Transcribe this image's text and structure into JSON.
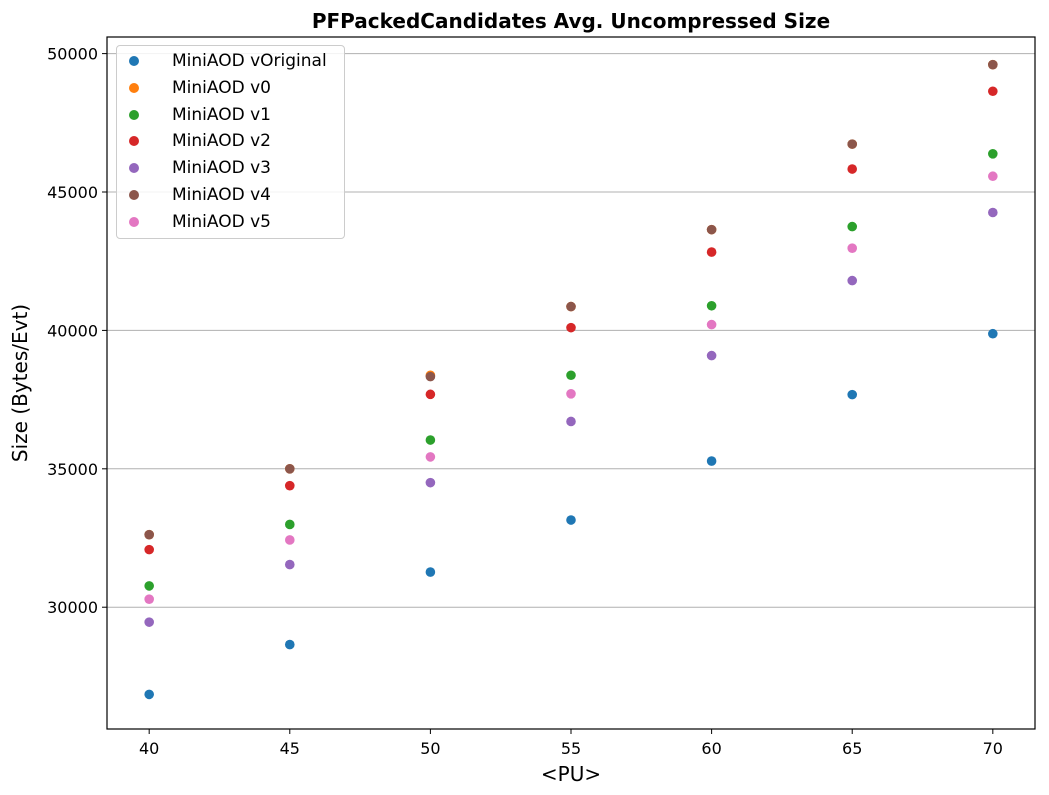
{
  "chart_data": {
    "type": "scatter",
    "title": "PFPackedCandidates Avg. Uncompressed Size",
    "xlabel": "<PU>",
    "ylabel": "Size (Bytes/Evt)",
    "x": [
      40,
      45,
      50,
      55,
      60,
      65,
      70
    ],
    "x_ticks": [
      "40",
      "45",
      "50",
      "55",
      "60",
      "65",
      "70"
    ],
    "y_ticks": [
      "30000",
      "35000",
      "40000",
      "45000",
      "50000"
    ],
    "xlim": [
      38.5,
      71.5
    ],
    "ylim": [
      25600,
      50600
    ],
    "grid": "horizontal",
    "legend_position": "top-left",
    "series": [
      {
        "name": "MiniAOD vOriginal",
        "color": "#1f77b4",
        "values": [
          26850,
          28650,
          31270,
          33150,
          35280,
          37680,
          39880
        ]
      },
      {
        "name": "MiniAOD v0",
        "color": "#ff7f0e",
        "values": [
          32620,
          35000,
          38380,
          40860,
          43640,
          46730,
          49600
        ]
      },
      {
        "name": "MiniAOD v1",
        "color": "#2ca02c",
        "values": [
          30770,
          32990,
          36040,
          38380,
          40890,
          43750,
          46380
        ]
      },
      {
        "name": "MiniAOD v2",
        "color": "#d62728",
        "values": [
          32080,
          34390,
          37690,
          40100,
          42830,
          45830,
          48640
        ]
      },
      {
        "name": "MiniAOD v3",
        "color": "#9467bd",
        "values": [
          29460,
          31540,
          34500,
          36710,
          39090,
          41800,
          44260
        ]
      },
      {
        "name": "MiniAOD v4",
        "color": "#8c564b",
        "values": [
          32620,
          35000,
          38330,
          40860,
          43640,
          46730,
          49600
        ]
      },
      {
        "name": "MiniAOD v5",
        "color": "#e377c2",
        "values": [
          30290,
          32430,
          35430,
          37710,
          40210,
          42970,
          45570
        ]
      }
    ]
  }
}
